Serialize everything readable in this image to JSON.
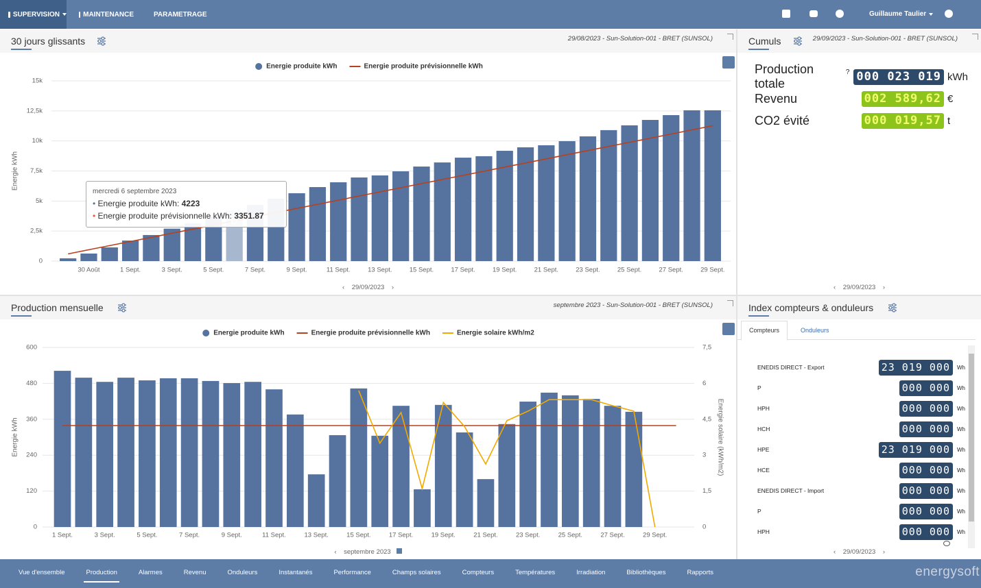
{
  "top_nav": {
    "items": [
      "SUPERVISION",
      "MAINTENANCE",
      "PARAMETRAGE"
    ],
    "user": "Guillaume Taulier"
  },
  "panels": {
    "rolling": {
      "title": "30 jours glissants",
      "info": "29/08/2023 - Sun-Solution-001 - BRET (SUNSOL)",
      "footer": "29/09/2023"
    },
    "cumuls": {
      "title": "Cumuls",
      "info": "29/09/2023 - Sun-Solution-001 - BRET (SUNSOL)",
      "footer": "29/09/2023",
      "rows": [
        {
          "label": "Production totale",
          "help": "?",
          "value": "000 023 019",
          "unit": "kWh"
        },
        {
          "label": "Revenu",
          "value": "002 589,62",
          "unit": "€"
        },
        {
          "label": "CO2 évité",
          "value": "000 019,57",
          "unit": "t"
        }
      ]
    },
    "monthly": {
      "title": "Production mensuelle",
      "info": "septembre 2023 - Sun-Solution-001 - BRET (SUNSOL)",
      "footer": "septembre 2023"
    },
    "index": {
      "title": "Index compteurs & onduleurs",
      "tabs": [
        "Compteurs",
        "Onduleurs"
      ],
      "footer": "29/09/2023",
      "rows": [
        {
          "label": "ENEDIS DIRECT - Export",
          "value": "23 019 000",
          "unit": "Wh"
        },
        {
          "label": "P",
          "value": "000 000",
          "unit": "Wh"
        },
        {
          "label": "HPH",
          "value": "000 000",
          "unit": "Wh"
        },
        {
          "label": "HCH",
          "value": "000 000",
          "unit": "Wh"
        },
        {
          "label": "HPE",
          "value": "23 019 000",
          "unit": "Wh"
        },
        {
          "label": "HCE",
          "value": "000 000",
          "unit": "Wh"
        },
        {
          "label": "ENEDIS DIRECT - Import",
          "value": "000 000",
          "unit": "Wh"
        },
        {
          "label": "P",
          "value": "000 000",
          "unit": "Wh"
        },
        {
          "label": "HPH",
          "value": "000 000",
          "unit": "Wh"
        }
      ]
    }
  },
  "chart_data": [
    {
      "type": "bar",
      "grid": true,
      "ylabel": "Energie kWh",
      "tooltip": "mercredi 6 septembre 2023",
      "categories": [
        null,
        "30 Août",
        null,
        "1 Sept.",
        null,
        "3 Sept.",
        null,
        "5 Sept.",
        null,
        "7 Sept.",
        null,
        "9 Sept.",
        null,
        "11 Sept.",
        null,
        "13 Sept.",
        null,
        "15 Sept.",
        null,
        "17 Sept.",
        null,
        "19 Sept.",
        null,
        "21 Sept.",
        null,
        "23 Sept.",
        null,
        "25 Sept.",
        null,
        "27 Sept.",
        null,
        "29 Sept."
      ],
      "ylim": [
        0,
        15000
      ],
      "yticks": [
        0,
        {
          "value": 2500,
          "label": "2,5k"
        },
        {
          "value": 5000,
          "label": "5k"
        },
        {
          "value": 7500,
          "label": "7,5k"
        },
        {
          "value": 10000,
          "label": "10k"
        },
        {
          "value": 12500,
          "label": "12,5k"
        },
        {
          "value": 15000,
          "label": "15k"
        }
      ],
      "series": [
        {
          "name": "Energie produite kWh",
          "type": "bar",
          "color": "#56739f",
          "values": [
            230,
            630,
            1140,
            1710,
            2170,
            2700,
            3140,
            3700,
            4223,
            4680,
            5190,
            5650,
            6160,
            6560,
            6960,
            7130,
            7470,
            7870,
            8210,
            8610,
            8730,
            9180,
            9470,
            9640,
            9980,
            10380,
            10900,
            11300,
            11750,
            12150,
            12550,
            12550
          ]
        },
        {
          "name": "Energie produite prévisionnelle kWh",
          "type": "line",
          "color": "#b8401c",
          "values": [
            600,
            944,
            1288,
            1632,
            1976,
            2320,
            2664,
            3008,
            3351.87,
            3696,
            4040,
            4384,
            4728,
            5072,
            5416,
            5760,
            6104,
            6448,
            6792,
            7136,
            7480,
            7824,
            8168,
            8512,
            8856,
            9200,
            9544,
            9888,
            10232,
            10576,
            10920,
            11264
          ]
        }
      ]
    },
    {
      "type": "bar",
      "grid": true,
      "ylabel": "Energie kWh",
      "y2label": "Energie solaire (kWh/m2)",
      "categories": [
        "1 Sept.",
        null,
        "3 Sept.",
        null,
        "5 Sept.",
        null,
        "7 Sept.",
        null,
        "9 Sept.",
        null,
        "11 Sept.",
        null,
        "13 Sept.",
        null,
        "15 Sept.",
        null,
        "17 Sept.",
        null,
        "19 Sept.",
        null,
        "21 Sept.",
        null,
        "23 Sept.",
        null,
        "25 Sept.",
        null,
        "27 Sept.",
        null,
        "29 Sept.",
        null
      ],
      "ylim": [
        0,
        600
      ],
      "yticks": [
        0,
        120,
        240,
        360,
        480,
        600
      ],
      "y2lim": [
        0,
        7.5
      ],
      "y2ticks": [
        0,
        {
          "value": 1.5,
          "label": "1,5"
        },
        3,
        {
          "value": 4.5,
          "label": "4,5"
        },
        6,
        {
          "value": 7.5,
          "label": "7,5"
        }
      ],
      "series": [
        {
          "name": "Energie produite kWh",
          "type": "bar",
          "color": "#56739f",
          "values": [
            522,
            499,
            485,
            499,
            490,
            497,
            497,
            488,
            481,
            485,
            460,
            376,
            176,
            307,
            463,
            305,
            405,
            126,
            408,
            316,
            160,
            344,
            419,
            449,
            440,
            428,
            405,
            385,
            null,
            null
          ]
        },
        {
          "name": "Energie produite prévisionnelle kWh",
          "type": "line",
          "color": "#b8401c",
          "values": [
            339,
            339,
            339,
            339,
            339,
            339,
            339,
            339,
            339,
            339,
            339,
            339,
            339,
            339,
            339,
            339,
            339,
            339,
            339,
            339,
            339,
            339,
            339,
            339,
            339,
            339,
            339,
            339,
            339,
            339
          ]
        },
        {
          "name": "Energie solaire kWh/m2",
          "type": "line",
          "axis": "y2",
          "color": "#f2a900",
          "values": [
            null,
            null,
            null,
            null,
            null,
            null,
            null,
            null,
            null,
            null,
            null,
            null,
            null,
            null,
            5.7,
            3.5,
            4.78,
            1.6,
            5.2,
            4.2,
            2.63,
            4.44,
            4.84,
            5.32,
            5.32,
            5.32,
            5.07,
            4.84,
            0,
            null
          ]
        }
      ]
    }
  ],
  "bottom_nav": {
    "items": [
      "Vue d'ensemble",
      "Production",
      "Alarmes",
      "Revenu",
      "Onduleurs",
      "Instantanés",
      "Performance",
      "Champs solaires",
      "Compteurs",
      "Températures",
      "Irradiation",
      "Bibliothèques",
      "Rapports"
    ],
    "active": 1,
    "brand": "energysoft"
  }
}
